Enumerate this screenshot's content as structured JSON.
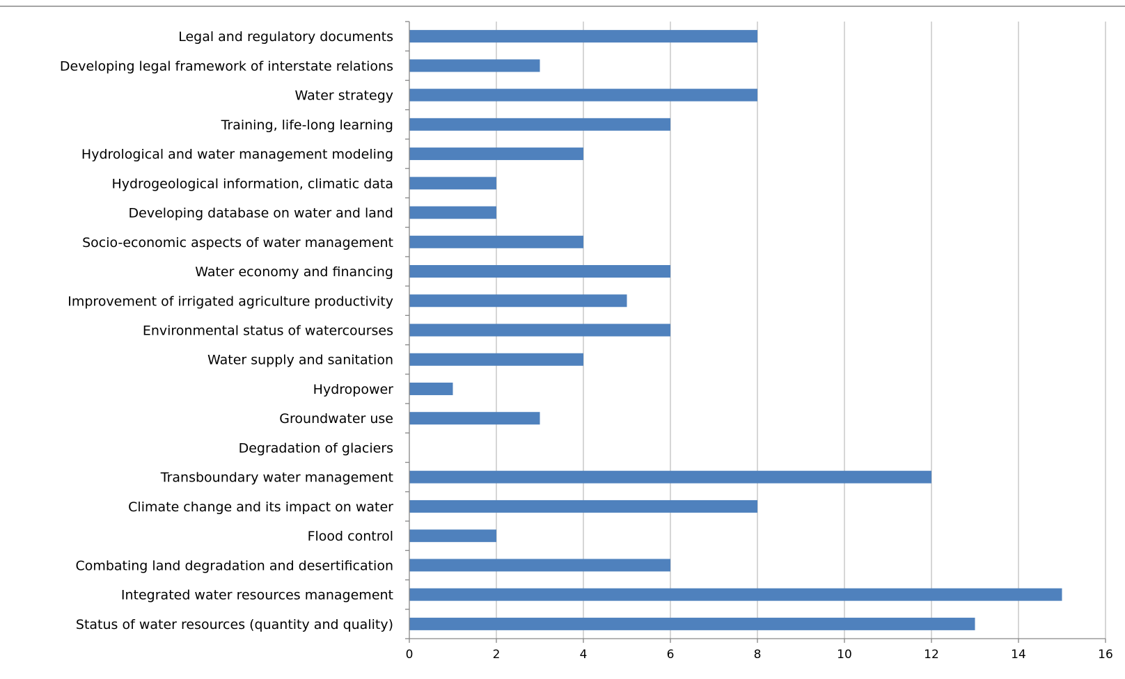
{
  "chart_data": {
    "type": "bar",
    "orientation": "horizontal",
    "categories": [
      "Legal and regulatory documents",
      "Developing legal framework of interstate relations",
      "Water strategy",
      "Training, life-long learning",
      "Hydrological and water management modeling",
      "Hydrogeological information, climatic data",
      "Developing database on water and land",
      "Socio-economic aspects of water management",
      "Water economy and financing",
      "Improvement of irrigated agriculture productivity",
      "Environmental status of watercourses",
      "Water supply and sanitation",
      "Hydropower",
      "Groundwater use",
      "Degradation of glaciers",
      "Transboundary water management",
      "Climate change and its impact on water",
      "Flood control",
      "Combating land degradation and desertification",
      "Integrated water resources management",
      "Status of water resources (quantity and quality)"
    ],
    "values": [
      8,
      3,
      8,
      6,
      4,
      2,
      2,
      4,
      6,
      5,
      6,
      4,
      1,
      3,
      0,
      12,
      8,
      2,
      6,
      15,
      13
    ],
    "xlim": [
      0,
      16
    ],
    "ticks": [
      "0",
      "2",
      "4",
      "6",
      "8",
      "10",
      "12",
      "14",
      "16"
    ],
    "grid": "vertical",
    "bar_color": "#4f81bd",
    "gridline_color": "#c0c0c0",
    "axis_color": "#868686",
    "title": "",
    "xlabel": "",
    "ylabel": ""
  }
}
